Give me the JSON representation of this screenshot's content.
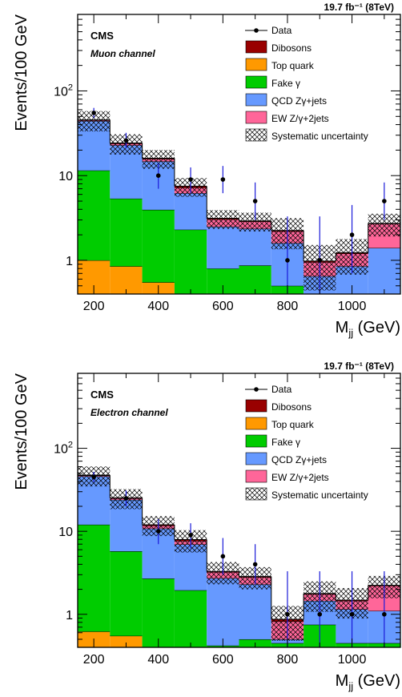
{
  "chart_data": [
    {
      "type": "bar",
      "title": "",
      "lumi": "19.7 fb⁻¹ (8TeV)",
      "experiment": "CMS",
      "channel": "Muon channel",
      "xlabel": "Mjj (GeV)",
      "ylabel": "Events/100 GeV",
      "xlim": [
        150,
        1150
      ],
      "ylim": [
        0.4,
        800
      ],
      "yscale": "log",
      "xticks": [
        "200",
        "400",
        "600",
        "800",
        "1000"
      ],
      "yticks": [
        "1",
        "10",
        "10²"
      ],
      "bin_edges": [
        150,
        250,
        350,
        450,
        550,
        650,
        750,
        850,
        950,
        1050,
        1150
      ],
      "stack": [
        {
          "name": "Top quark",
          "color": "#ff9900",
          "values": [
            1.0,
            0.85,
            0.55,
            0,
            0,
            0,
            0,
            0,
            0,
            0
          ]
        },
        {
          "name": "Fake γ",
          "color": "#00cc00",
          "values": [
            10.5,
            4.5,
            3.4,
            2.3,
            0.8,
            0.87,
            0.5,
            0,
            0,
            0
          ]
        },
        {
          "name": "QCD Zγ+jets",
          "color": "#6699ff",
          "values": [
            32.5,
            17.5,
            10.8,
            3.9,
            1.7,
            1.5,
            1.1,
            0.65,
            0.85,
            1.4
          ]
        },
        {
          "name": "EW Z/γ+2jets",
          "color": "#ff6699",
          "values": [
            1.0,
            1.0,
            1.0,
            1.0,
            0.55,
            0.5,
            0.6,
            0.3,
            0.35,
            1.3
          ]
        },
        {
          "name": "Dibosons",
          "color": "#990000",
          "values": [
            0.5,
            0.4,
            0.3,
            0.3,
            0.08,
            0.05,
            0.05,
            0.03,
            0.03,
            0.03
          ]
        }
      ],
      "syst_uncertainty": [
        0.27,
        0.27,
        0.25,
        0.25,
        0.25,
        0.25,
        0.4,
        0.55,
        0.45,
        0.3
      ],
      "data": [
        {
          "x": 200,
          "y": 55,
          "lo": 48,
          "hi": 63
        },
        {
          "x": 300,
          "y": 26,
          "lo": 21,
          "hi": 32
        },
        {
          "x": 400,
          "y": 10,
          "lo": 7,
          "hi": 14
        },
        {
          "x": 500,
          "y": 9,
          "lo": 6.2,
          "hi": 12.5
        },
        {
          "x": 600,
          "y": 9,
          "lo": 6.2,
          "hi": 13
        },
        {
          "x": 700,
          "y": 5,
          "lo": 3.0,
          "hi": 8.3
        },
        {
          "x": 800,
          "y": 1,
          "lo": 0.4,
          "hi": 3.3
        },
        {
          "x": 900,
          "y": 1,
          "lo": 0.4,
          "hi": 3.3
        },
        {
          "x": 1000,
          "y": 2,
          "lo": 0.7,
          "hi": 4.5
        },
        {
          "x": 1100,
          "y": 5,
          "lo": 3.0,
          "hi": 8.3
        }
      ]
    },
    {
      "type": "bar",
      "title": "",
      "lumi": "19.7 fb⁻¹ (8TeV)",
      "experiment": "CMS",
      "channel": "Electron channel",
      "xlabel": "Mjj (GeV)",
      "ylabel": "Events/100 GeV",
      "xlim": [
        150,
        1150
      ],
      "ylim": [
        0.4,
        800
      ],
      "yscale": "log",
      "xticks": [
        "200",
        "400",
        "600",
        "800",
        "1000"
      ],
      "yticks": [
        "1",
        "10",
        "10²"
      ],
      "bin_edges": [
        150,
        250,
        350,
        450,
        550,
        650,
        750,
        850,
        950,
        1050,
        1150
      ],
      "stack": [
        {
          "name": "Top quark",
          "color": "#ff9900",
          "values": [
            0.62,
            0.55,
            0,
            0,
            0,
            0,
            0,
            0,
            0,
            0
          ]
        },
        {
          "name": "Fake γ",
          "color": "#00cc00",
          "values": [
            11.4,
            5.2,
            2.7,
            1.95,
            0.42,
            0.5,
            0.45,
            0.75,
            0.45,
            0.45
          ]
        },
        {
          "name": "QCD Zγ+jets",
          "color": "#6699ff",
          "values": [
            34,
            18.2,
            8.1,
            5.0,
            2.3,
            1.8,
            0.05,
            0.7,
            0.7,
            0.65
          ]
        },
        {
          "name": "EW Z/γ+2jets",
          "color": "#ff6699",
          "values": [
            1.0,
            1.0,
            0.9,
            0.7,
            0.5,
            0.5,
            0.32,
            0.3,
            0.3,
            1.1
          ]
        },
        {
          "name": "Dibosons",
          "color": "#990000",
          "values": [
            0.5,
            0.4,
            0.3,
            0.3,
            0.06,
            0.05,
            0.05,
            0.03,
            0.03,
            0.03
          ]
        }
      ],
      "syst_uncertainty": [
        0.27,
        0.27,
        0.27,
        0.3,
        0.3,
        0.3,
        0.45,
        0.4,
        0.4,
        0.3
      ],
      "data": [
        {
          "x": 200,
          "y": 45,
          "lo": 39,
          "hi": 52
        },
        {
          "x": 300,
          "y": 25,
          "lo": 20,
          "hi": 31
        },
        {
          "x": 400,
          "y": 10,
          "lo": 7,
          "hi": 14
        },
        {
          "x": 500,
          "y": 9,
          "lo": 6.2,
          "hi": 12.5
        },
        {
          "x": 600,
          "y": 5,
          "lo": 3.0,
          "hi": 8.3
        },
        {
          "x": 700,
          "y": 4,
          "lo": 2.3,
          "hi": 7.0
        },
        {
          "x": 800,
          "y": 1,
          "lo": 0.4,
          "hi": 3.3
        },
        {
          "x": 900,
          "y": 1,
          "lo": 0.4,
          "hi": 3.3
        },
        {
          "x": 1000,
          "y": 1,
          "lo": 0.4,
          "hi": 3.3
        },
        {
          "x": 1100,
          "y": 1,
          "lo": 0.4,
          "hi": 3.3
        }
      ]
    }
  ],
  "legend": {
    "data_label": "Data",
    "syst_label": "Systematic uncertainty",
    "order": [
      "Dibosons",
      "Top quark",
      "Fake γ",
      "QCD Zγ+jets",
      "EW Z/γ+2jets"
    ]
  }
}
